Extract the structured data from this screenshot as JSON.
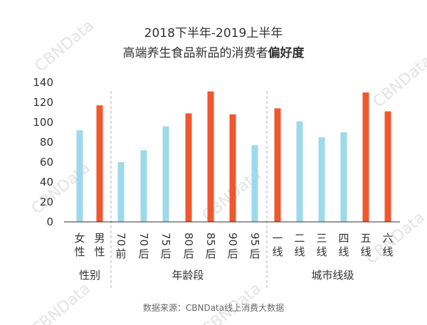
{
  "title_line1": "2018下半年-2019上半年",
  "title_line2_normal": "高端养生食品新品的消费者",
  "title_line2_bold": "偏好度",
  "source": "数据来源：CBNData线上消费大数据",
  "watermark": "CBNData",
  "colors": {
    "blue": "#9dd9ec",
    "orange": "#f1572d",
    "axis": "#333333",
    "divider": "#b0b0b0"
  },
  "chart_data": {
    "type": "bar",
    "ylim": [
      0,
      140
    ],
    "yticks": [
      0,
      20,
      40,
      60,
      80,
      100,
      120,
      140
    ],
    "groups": [
      {
        "label": "性别",
        "categories": [
          {
            "label": "女性",
            "value": 92,
            "color": "blue"
          },
          {
            "label": "男性",
            "value": 117,
            "color": "orange"
          }
        ]
      },
      {
        "label": "年龄段",
        "categories": [
          {
            "label": "70前",
            "value": 60,
            "color": "blue"
          },
          {
            "label": "70后",
            "value": 72,
            "color": "blue"
          },
          {
            "label": "75后",
            "value": 96,
            "color": "blue"
          },
          {
            "label": "80后",
            "value": 109,
            "color": "orange"
          },
          {
            "label": "85后",
            "value": 131,
            "color": "orange"
          },
          {
            "label": "90后",
            "value": 108,
            "color": "orange"
          },
          {
            "label": "95后",
            "value": 77,
            "color": "blue"
          }
        ]
      },
      {
        "label": "城市线级",
        "categories": [
          {
            "label": "一线",
            "value": 114,
            "color": "orange"
          },
          {
            "label": "二线",
            "value": 101,
            "color": "blue"
          },
          {
            "label": "三线",
            "value": 85,
            "color": "blue"
          },
          {
            "label": "四线",
            "value": 90,
            "color": "blue"
          },
          {
            "label": "五线",
            "value": 130,
            "color": "orange"
          },
          {
            "label": "六线",
            "value": 111,
            "color": "orange"
          }
        ]
      }
    ]
  }
}
